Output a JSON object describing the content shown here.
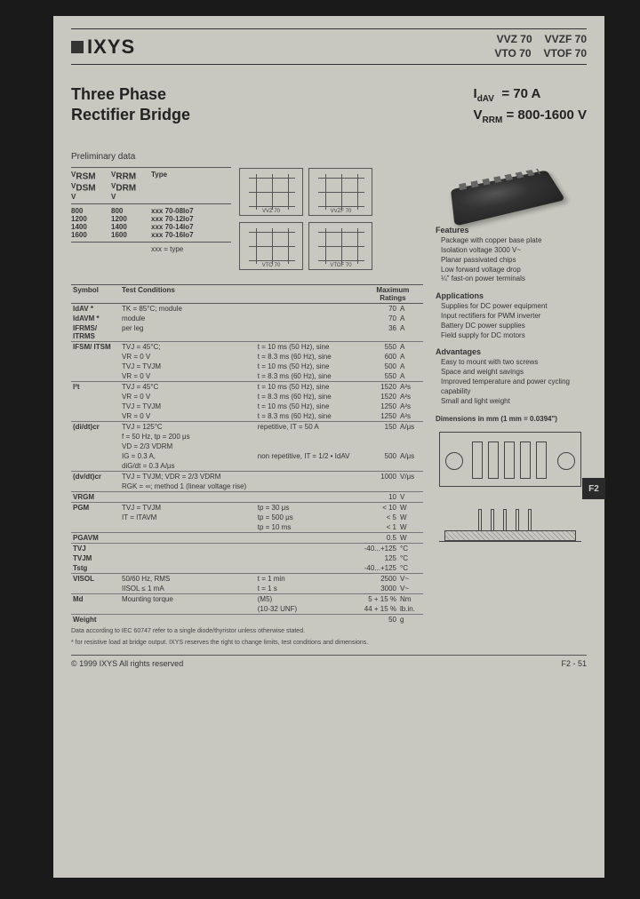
{
  "header": {
    "logo_text": "IXYS",
    "parts_r1a": "VVZ 70",
    "parts_r1b": "VVZF 70",
    "parts_r2a": "VTO 70",
    "parts_r2b": "VTOF 70"
  },
  "title": {
    "line1": "Three Phase",
    "line2": "Rectifier Bridge"
  },
  "specs": {
    "idav": "= 70 A",
    "vrrm": "= 800-1600 V",
    "idav_sym": "I",
    "idav_sub": "dAV",
    "vrrm_sym": "V",
    "vrrm_sub": "RRM"
  },
  "prelim": "Preliminary data",
  "type_table": {
    "head": {
      "c1a": "V",
      "c1a_sub": "RSM",
      "c1b": "V",
      "c1b_sub": "DSM",
      "c2a": "V",
      "c2a_sub": "RRM",
      "c2b": "V",
      "c2b_sub": "DRM",
      "c3": "Type",
      "u": "V"
    },
    "rows": [
      {
        "v1": "800",
        "v2": "800",
        "t": "xxx 70-08Io7"
      },
      {
        "v1": "1200",
        "v2": "1200",
        "t": "xxx 70-12Io7"
      },
      {
        "v1": "1400",
        "v2": "1400",
        "t": "xxx 70-14Io7"
      },
      {
        "v1": "1600",
        "v2": "1600",
        "t": "xxx 70-16Io7"
      }
    ],
    "note": "xxx = type"
  },
  "diagram_labels": {
    "d1": "VVZ 70",
    "d2": "VVZF 70",
    "d3": "VTO 70",
    "d4": "VTOF 70"
  },
  "main_table": {
    "head": {
      "sym": "Symbol",
      "cond": "Test Conditions",
      "max": "Maximum Ratings"
    },
    "rows": [
      {
        "sep": true,
        "sym": "IdAV  *",
        "c1": "TK = 85°C; module",
        "c2": "",
        "val": "70",
        "unit": "A"
      },
      {
        "sym": "IdAVM *",
        "c1": "module",
        "c2": "",
        "val": "70",
        "unit": "A"
      },
      {
        "sym": "IFRMS/ ITRMS",
        "c1": "per leg",
        "c2": "",
        "val": "36",
        "unit": "A"
      },
      {
        "sep": true,
        "sym": "IFSM/ ITSM",
        "c1": "TVJ = 45°C;",
        "c2": "t = 10 ms  (50 Hz), sine",
        "val": "550",
        "unit": "A"
      },
      {
        "sym": "",
        "c1": "VR = 0 V",
        "c2": "t = 8.3 ms (60 Hz), sine",
        "val": "600",
        "unit": "A"
      },
      {
        "sym": "",
        "c1": "TVJ = TVJM",
        "c2": "t = 10 ms  (50 Hz), sine",
        "val": "500",
        "unit": "A"
      },
      {
        "sym": "",
        "c1": "VR = 0 V",
        "c2": "t = 8.3 ms (60 Hz), sine",
        "val": "550",
        "unit": "A"
      },
      {
        "sep": true,
        "sym": "I²t",
        "c1": "TVJ = 45°C",
        "c2": "t = 10 ms  (50 Hz), sine",
        "val": "1520",
        "unit": "A²s"
      },
      {
        "sym": "",
        "c1": "VR = 0 V",
        "c2": "t = 8.3 ms (60 Hz), sine",
        "val": "1520",
        "unit": "A²s"
      },
      {
        "sym": "",
        "c1": "TVJ = TVJM",
        "c2": "t = 10 ms  (50 Hz), sine",
        "val": "1250",
        "unit": "A²s"
      },
      {
        "sym": "",
        "c1": "VR = 0 V",
        "c2": "t = 8.3 ms (60 Hz), sine",
        "val": "1250",
        "unit": "A²s"
      },
      {
        "sep": true,
        "sym": "(di/dt)cr",
        "c1": "TVJ = 125°C",
        "c2": "repetitive, IT = 50 A",
        "val": "150",
        "unit": "A/μs"
      },
      {
        "sym": "",
        "c1": "f = 50 Hz, tp = 200 μs",
        "c2": "",
        "val": "",
        "unit": ""
      },
      {
        "sym": "",
        "c1": "VD = 2/3 VDRM",
        "c2": "",
        "val": "",
        "unit": ""
      },
      {
        "sym": "",
        "c1": "IG = 0.3 A,",
        "c2": "non repetitive, IT = 1/2 • IdAV",
        "val": "500",
        "unit": "A/μs"
      },
      {
        "sym": "",
        "c1": "diG/dt = 0.3 A/μs",
        "c2": "",
        "val": "",
        "unit": ""
      },
      {
        "sep": true,
        "sym": "(dv/dt)cr",
        "c1": "TVJ = TVJM; VDR = 2/3 VDRM",
        "c2": "",
        "val": "1000",
        "unit": "V/μs"
      },
      {
        "sym": "",
        "c1": "RGK = ∞; method 1 (linear voltage rise)",
        "c2": "",
        "val": "",
        "unit": ""
      },
      {
        "sep": true,
        "sym": "VRGM",
        "c1": "",
        "c2": "",
        "val": "10",
        "unit": "V"
      },
      {
        "sep": true,
        "sym": "PGM",
        "c1": "TVJ = TVJM",
        "c2": "tp =    30 μs",
        "val": "<   10",
        "unit": "W"
      },
      {
        "sym": "",
        "c1": "IT = ITAVM",
        "c2": "tp =  500 μs",
        "val": "<     5",
        "unit": "W"
      },
      {
        "sym": "",
        "c1": "",
        "c2": "tp =  10 ms",
        "val": "<     1",
        "unit": "W"
      },
      {
        "sep": true,
        "sym": "PGAVM",
        "c1": "",
        "c2": "",
        "val": "0.5",
        "unit": "W"
      },
      {
        "sep": true,
        "sym": "TVJ",
        "c1": "",
        "c2": "",
        "val": "-40...+125",
        "unit": "°C"
      },
      {
        "sym": "TVJM",
        "c1": "",
        "c2": "",
        "val": "125",
        "unit": "°C"
      },
      {
        "sym": "Tstg",
        "c1": "",
        "c2": "",
        "val": "-40...+125",
        "unit": "°C"
      },
      {
        "sep": true,
        "sym": "VISOL",
        "c1": "50/60 Hz, RMS",
        "c2": "t = 1 min",
        "val": "2500",
        "unit": "V~"
      },
      {
        "sym": "",
        "c1": "IISOL ≤ 1 mA",
        "c2": "t = 1 s",
        "val": "3000",
        "unit": "V~"
      },
      {
        "sep": true,
        "sym": "Md",
        "c1": "Mounting torque",
        "c2": "(M5)",
        "val": "5 + 15 %",
        "unit": "Nm"
      },
      {
        "sym": "",
        "c1": "",
        "c2": "(10-32 UNF)",
        "val": "44 + 15 %",
        "unit": "lb.in."
      },
      {
        "sep": true,
        "sym": "Weight",
        "c1": "",
        "c2": "",
        "val": "50",
        "unit": "g"
      }
    ]
  },
  "features": {
    "h": "Features",
    "items": [
      "Package with copper base plate",
      "Isolation voltage 3000 V~",
      "Planar passivated chips",
      "Low forward voltage drop",
      "¼\" fast-on power terminals"
    ]
  },
  "applications": {
    "h": "Applications",
    "items": [
      "Supplies for DC power equipment",
      "Input rectifiers for PWM inverter",
      "Battery DC power supplies",
      "Field supply for DC motors"
    ]
  },
  "advantages": {
    "h": "Advantages",
    "items": [
      "Easy to mount with two screws",
      "Space and weight savings",
      "Improved temperature and power cycling capability",
      "Small and light weight"
    ]
  },
  "dimensions_h": "Dimensions in mm (1 mm = 0.0394\")",
  "footnote1": "Data according to IEC 60747 refer to a single diode/thyristor unless otherwise stated.",
  "footnote2": "*  for resistive load at bridge output. IXYS reserves the right to change limits, test conditions and dimensions.",
  "footer": {
    "copy": "© 1999 IXYS All rights reserved",
    "page": "F2 - 51"
  },
  "tab": "F2"
}
